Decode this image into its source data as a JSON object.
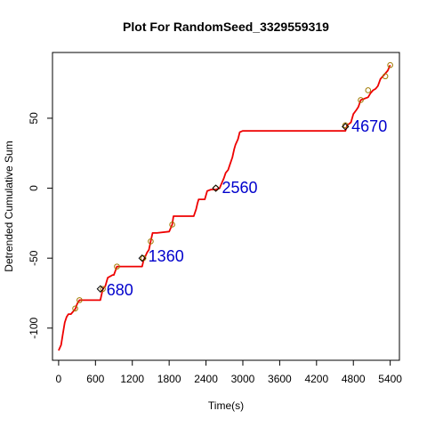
{
  "chart_data": {
    "type": "line",
    "title": "Plot For RandomSeed_3329559319",
    "xlabel": "Time(s)",
    "ylabel": "Detrended Cumulative Sum",
    "xlim": [
      -100,
      5550
    ],
    "ylim": [
      -123,
      97
    ],
    "xticks": [
      0,
      600,
      1200,
      1800,
      2400,
      3000,
      3600,
      4200,
      4800,
      5400
    ],
    "yticks": [
      -100,
      -50,
      0,
      50
    ],
    "grid": false,
    "legend": "none",
    "colors": {
      "line": "#ee0000",
      "circle": "#a07a00",
      "diamond": "#000000",
      "annotation": "#0000cc",
      "axis": "#000000"
    },
    "series": [
      {
        "x": [
          0,
          40,
          70,
          100,
          130,
          160,
          200,
          260,
          275,
          290,
          310,
          340,
          360,
          680,
          720,
          760,
          800,
          880,
          900,
          950,
          1360,
          1380,
          1400,
          1440,
          1470,
          1500,
          1530,
          1600,
          1800,
          1850,
          1870,
          1900,
          2200,
          2240,
          2260,
          2280,
          2380,
          2420,
          2480,
          2560,
          2620,
          2660,
          2690,
          2720,
          2760,
          2790,
          2830,
          2860,
          2880,
          2920,
          2950,
          3000,
          4670,
          4700,
          4760,
          4800,
          4850,
          4880,
          4920,
          5040,
          5080,
          5120,
          5160,
          5200,
          5240,
          5280,
          5320,
          5360,
          5400
        ],
        "y": [
          -116,
          -112,
          -104,
          -96,
          -92,
          -90,
          -90,
          -87,
          -86,
          -84,
          -82,
          -80,
          -80,
          -80,
          -72,
          -70,
          -64,
          -62,
          -62,
          -56,
          -56,
          -52,
          -50,
          -46,
          -44,
          -38,
          -32,
          -32,
          -31,
          -26,
          -20,
          -20,
          -20,
          -15,
          -11,
          -8,
          -8,
          -2,
          -1,
          -1,
          0,
          4,
          7,
          11,
          13,
          17,
          22,
          28,
          31,
          35,
          40,
          41,
          41,
          45,
          47,
          53,
          56,
          58,
          63,
          65,
          68,
          70,
          71,
          73,
          78,
          80,
          82,
          84,
          88
        ]
      }
    ],
    "circle_markers": [
      {
        "x": 270,
        "y": -86
      },
      {
        "x": 340,
        "y": -80
      },
      {
        "x": 720,
        "y": -72
      },
      {
        "x": 950,
        "y": -56
      },
      {
        "x": 1380,
        "y": -50
      },
      {
        "x": 1500,
        "y": -38
      },
      {
        "x": 1850,
        "y": -26
      },
      {
        "x": 2560,
        "y": 0
      },
      {
        "x": 4670,
        "y": 45
      },
      {
        "x": 4920,
        "y": 63
      },
      {
        "x": 5040,
        "y": 70
      },
      {
        "x": 5320,
        "y": 80
      },
      {
        "x": 5400,
        "y": 88
      }
    ],
    "diamond_markers": [
      {
        "x": 680,
        "y": -72
      },
      {
        "x": 1360,
        "y": -50
      },
      {
        "x": 2560,
        "y": 0
      },
      {
        "x": 4670,
        "y": 44
      }
    ],
    "annotations": [
      {
        "text": "680",
        "x": 780,
        "y": -72
      },
      {
        "text": "1360",
        "x": 1460,
        "y": -48
      },
      {
        "text": "2560",
        "x": 2660,
        "y": 1
      },
      {
        "text": "4670",
        "x": 4770,
        "y": 45
      }
    ]
  }
}
